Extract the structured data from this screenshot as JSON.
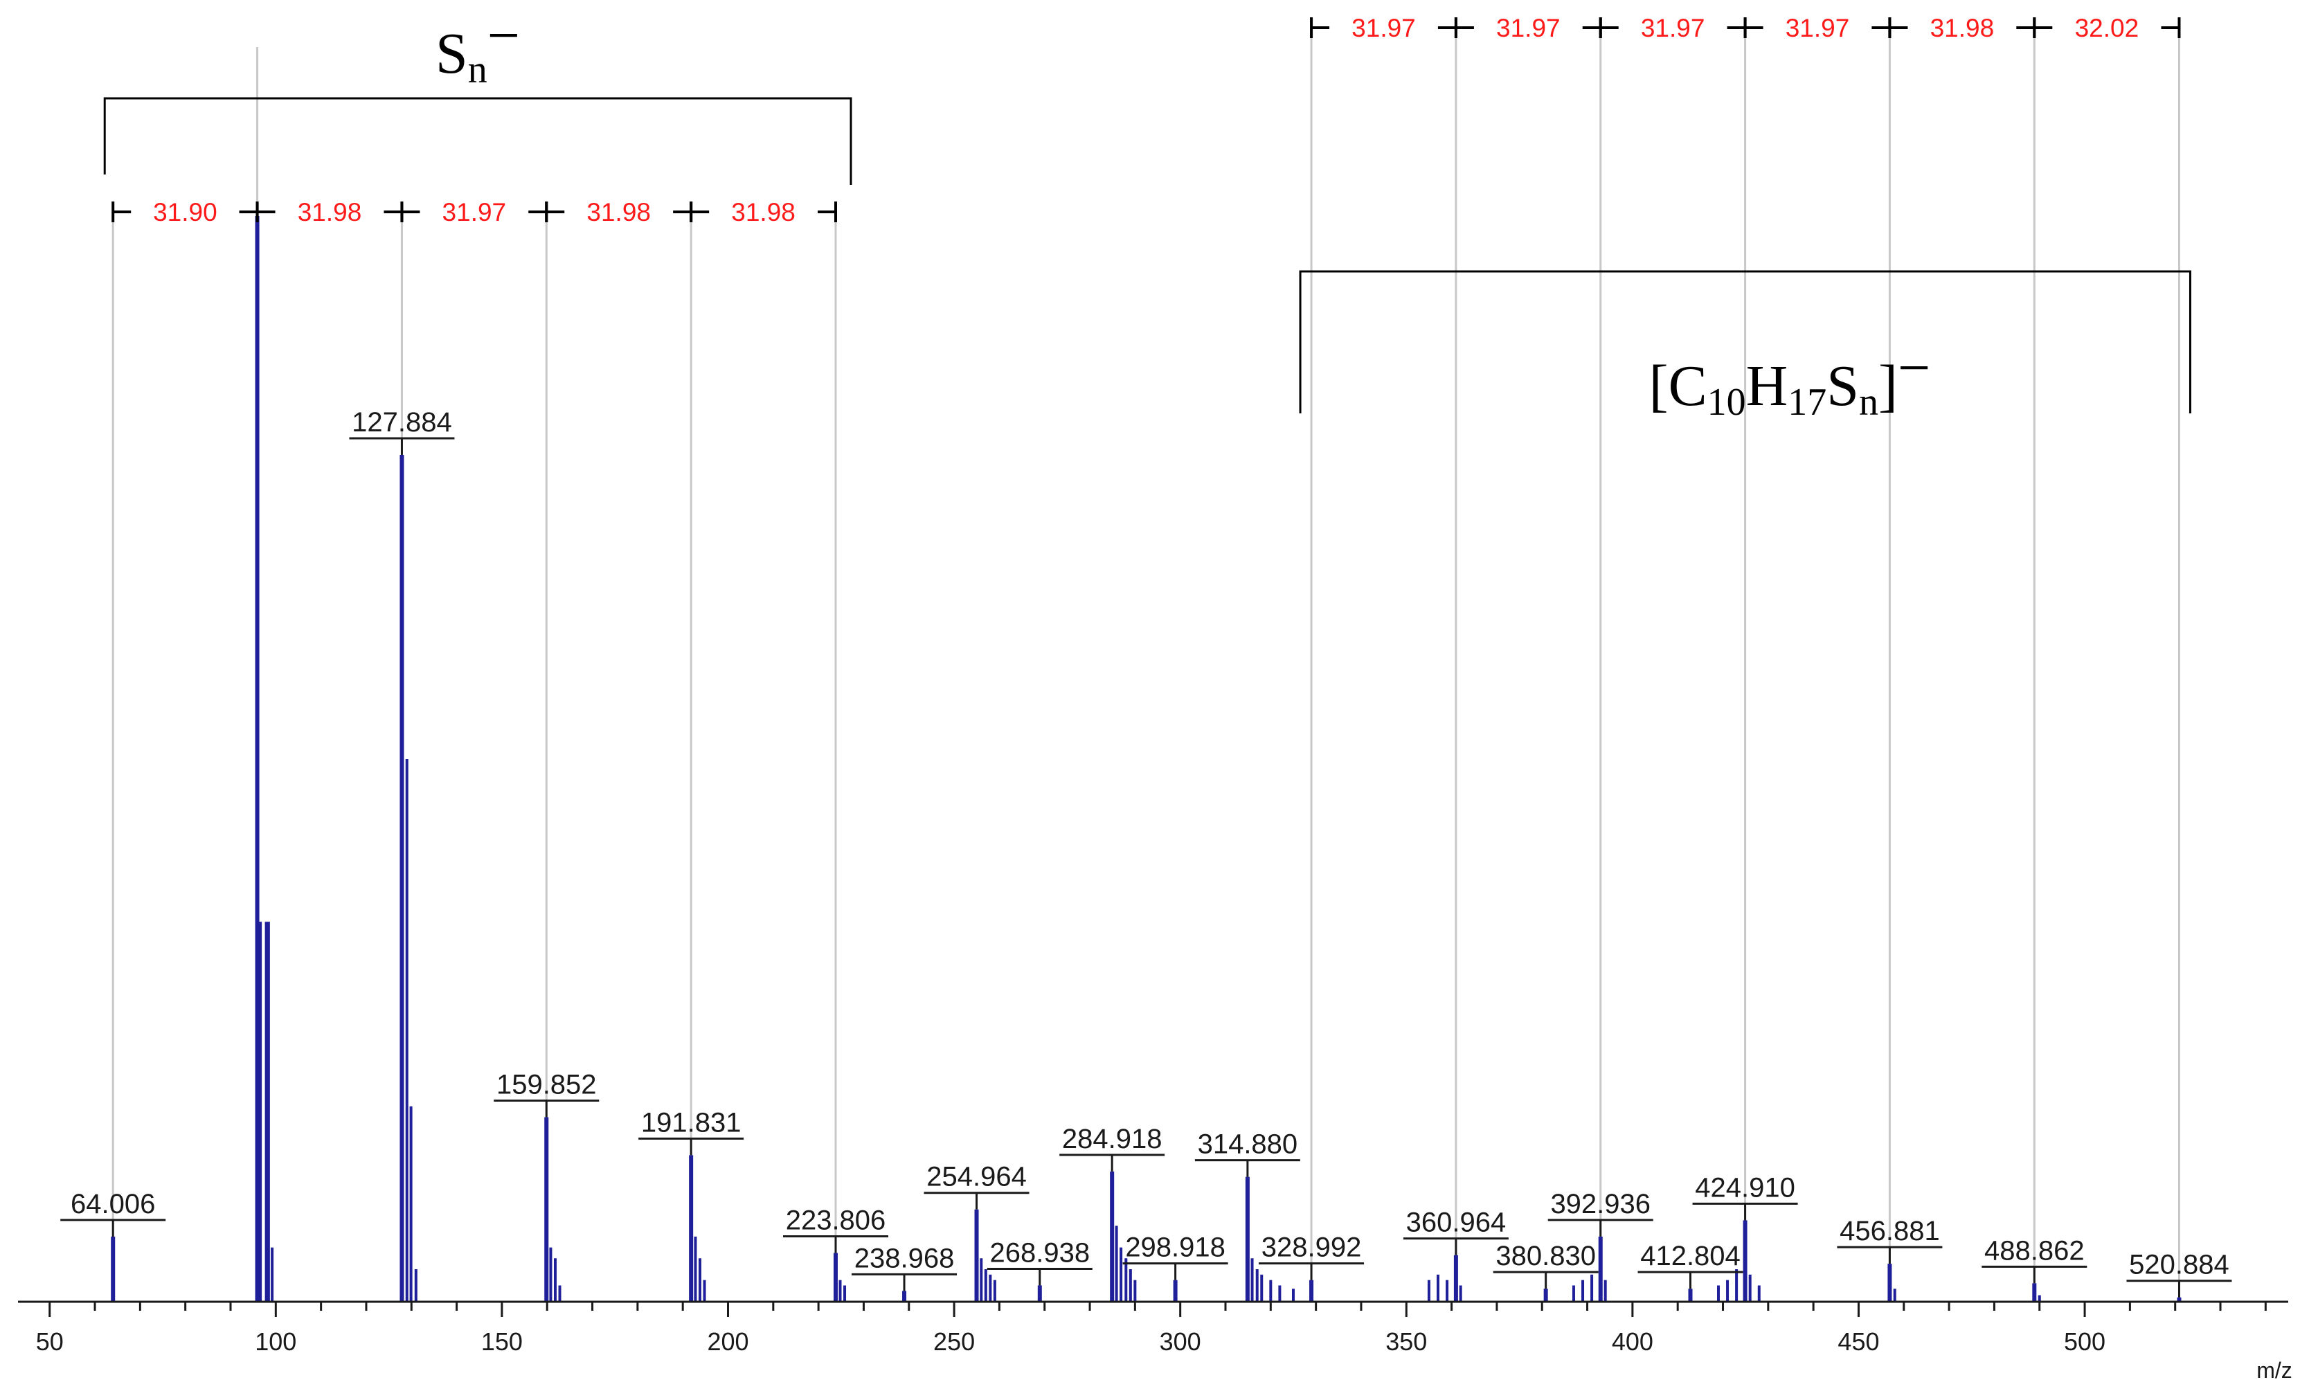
{
  "chart_data": {
    "type": "bar",
    "xlabel": "m/z",
    "xlim": [
      43,
      545
    ],
    "ylim": [
      0,
      100
    ],
    "x_ticks": [
      50,
      100,
      150,
      200,
      250,
      300,
      350,
      400,
      450,
      500
    ],
    "bar_color": "#1f1f99",
    "annotation_color": "#ff1a1a",
    "major_peaks": [
      {
        "x": 64.006,
        "y": 6,
        "label": "64.006"
      },
      {
        "x": 95.903,
        "y": 100,
        "label": ""
      },
      {
        "x": 127.884,
        "y": 78,
        "label": "127.884"
      },
      {
        "x": 159.852,
        "y": 17,
        "label": "159.852"
      },
      {
        "x": 191.831,
        "y": 13.5,
        "label": "191.831"
      },
      {
        "x": 223.806,
        "y": 4.5,
        "label": "223.806"
      },
      {
        "x": 238.968,
        "y": 1,
        "label": "238.968"
      },
      {
        "x": 254.964,
        "y": 8.5,
        "label": "254.964"
      },
      {
        "x": 268.938,
        "y": 1.5,
        "label": "268.938"
      },
      {
        "x": 284.918,
        "y": 12,
        "label": "284.918"
      },
      {
        "x": 298.918,
        "y": 2,
        "label": "298.918"
      },
      {
        "x": 314.88,
        "y": 11.5,
        "label": "314.880"
      },
      {
        "x": 328.992,
        "y": 2,
        "label": "328.992"
      },
      {
        "x": 360.964,
        "y": 4.3,
        "label": "360.964"
      },
      {
        "x": 380.83,
        "y": 1.2,
        "label": "380.830"
      },
      {
        "x": 392.936,
        "y": 6,
        "label": "392.936"
      },
      {
        "x": 412.804,
        "y": 1.2,
        "label": "412.804"
      },
      {
        "x": 424.91,
        "y": 7.5,
        "label": "424.910"
      },
      {
        "x": 456.881,
        "y": 3.5,
        "label": "456.881"
      },
      {
        "x": 488.862,
        "y": 1.7,
        "label": "488.862"
      },
      {
        "x": 520.884,
        "y": 0.4,
        "label": "520.884"
      }
    ],
    "minor_peaks": [
      {
        "x": 96.6,
        "y": 35
      },
      {
        "x": 97.9,
        "y": 35
      },
      {
        "x": 98.4,
        "y": 35
      },
      {
        "x": 99.2,
        "y": 5
      },
      {
        "x": 129.0,
        "y": 50
      },
      {
        "x": 129.9,
        "y": 18
      },
      {
        "x": 131.0,
        "y": 3
      },
      {
        "x": 160.8,
        "y": 5
      },
      {
        "x": 161.8,
        "y": 4
      },
      {
        "x": 162.8,
        "y": 1.5
      },
      {
        "x": 192.8,
        "y": 6
      },
      {
        "x": 193.8,
        "y": 4
      },
      {
        "x": 194.8,
        "y": 2
      },
      {
        "x": 224.8,
        "y": 2
      },
      {
        "x": 225.8,
        "y": 1.5
      },
      {
        "x": 256.0,
        "y": 4
      },
      {
        "x": 257.0,
        "y": 3
      },
      {
        "x": 258.0,
        "y": 2.5
      },
      {
        "x": 259.0,
        "y": 2
      },
      {
        "x": 285.9,
        "y": 7
      },
      {
        "x": 286.9,
        "y": 5
      },
      {
        "x": 288.0,
        "y": 4
      },
      {
        "x": 289.0,
        "y": 3
      },
      {
        "x": 290.0,
        "y": 2
      },
      {
        "x": 315.9,
        "y": 4
      },
      {
        "x": 317.0,
        "y": 3
      },
      {
        "x": 318.0,
        "y": 2.5
      },
      {
        "x": 320.0,
        "y": 2
      },
      {
        "x": 322.0,
        "y": 1.5
      },
      {
        "x": 325.0,
        "y": 1.2
      },
      {
        "x": 355.0,
        "y": 2
      },
      {
        "x": 357.0,
        "y": 2.5
      },
      {
        "x": 359.0,
        "y": 2
      },
      {
        "x": 362.0,
        "y": 1.5
      },
      {
        "x": 387.0,
        "y": 1.5
      },
      {
        "x": 389.0,
        "y": 2
      },
      {
        "x": 391.0,
        "y": 2.5
      },
      {
        "x": 394.0,
        "y": 2
      },
      {
        "x": 419.0,
        "y": 1.5
      },
      {
        "x": 421.0,
        "y": 2
      },
      {
        "x": 423.0,
        "y": 3
      },
      {
        "x": 426.0,
        "y": 2.5
      },
      {
        "x": 428.0,
        "y": 1.5
      },
      {
        "x": 458.0,
        "y": 1.2
      },
      {
        "x": 490.0,
        "y": 0.6
      }
    ],
    "guide_lines": [
      64.006,
      95.903,
      127.884,
      159.852,
      191.831,
      223.806,
      328.992,
      360.964,
      392.936,
      424.91,
      456.881,
      488.862,
      520.884
    ],
    "groups": [
      {
        "name": "S",
        "sub": "n",
        "sup": "−",
        "x_start": 64.006,
        "x_end": 223.806,
        "opens": "down"
      },
      {
        "name": "[C",
        "sub1": "10",
        "mid": "H",
        "sub2": "17",
        "mid2": "S",
        "sub3": "n",
        "end": "]",
        "sup": "−",
        "x_start": 328.992,
        "x_end": 520.884,
        "opens": "down"
      }
    ],
    "spacings": [
      {
        "from": 64.006,
        "to": 95.903,
        "label": "31.90",
        "row": "lower"
      },
      {
        "from": 95.903,
        "to": 127.884,
        "label": "31.98",
        "row": "lower"
      },
      {
        "from": 127.884,
        "to": 159.852,
        "label": "31.97",
        "row": "lower"
      },
      {
        "from": 159.852,
        "to": 191.831,
        "label": "31.98",
        "row": "lower"
      },
      {
        "from": 191.831,
        "to": 223.806,
        "label": "31.98",
        "row": "lower"
      },
      {
        "from": 328.992,
        "to": 360.964,
        "label": "31.97",
        "row": "upper"
      },
      {
        "from": 360.964,
        "to": 392.936,
        "label": "31.97",
        "row": "upper"
      },
      {
        "from": 392.936,
        "to": 424.91,
        "label": "31.97",
        "row": "upper"
      },
      {
        "from": 424.91,
        "to": 456.881,
        "label": "31.97",
        "row": "upper"
      },
      {
        "from": 456.881,
        "to": 488.862,
        "label": "31.98",
        "row": "upper"
      },
      {
        "from": 488.862,
        "to": 520.884,
        "label": "32.02",
        "row": "upper"
      }
    ]
  }
}
